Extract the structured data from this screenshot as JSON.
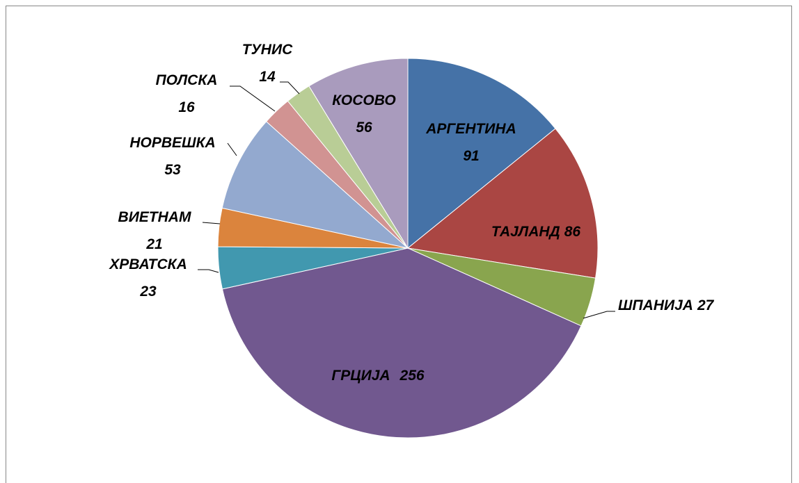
{
  "chart_data": {
    "type": "pie",
    "categories": [
      "АРГЕНТИНА",
      "ТАЈЛАНД",
      "ШПАНИЈА",
      "ГРЦИЈА",
      "ХРВАТСКА",
      "ВИЕТНАМ",
      "НОРВЕШКА",
      "ПОЛСКА",
      "ТУНИС",
      "КОСОВО"
    ],
    "values": [
      91,
      86,
      27,
      256,
      23,
      21,
      53,
      16,
      14,
      56
    ],
    "colors": [
      "#4572a7",
      "#aa4643",
      "#89a54e",
      "#71588f",
      "#4198af",
      "#db843d",
      "#93a9cf",
      "#d19392",
      "#b9cd96",
      "#a99bbd"
    ]
  }
}
